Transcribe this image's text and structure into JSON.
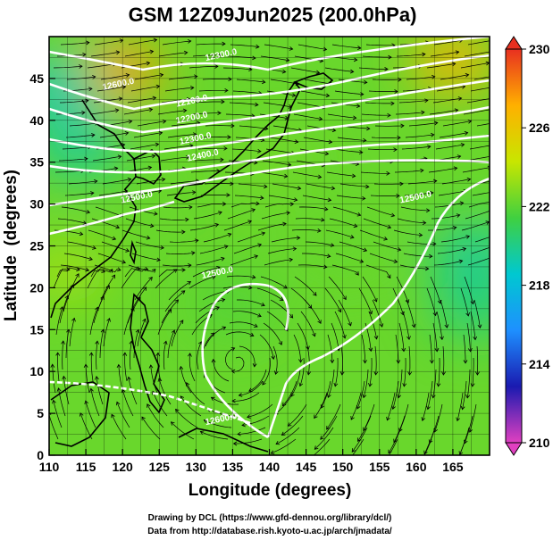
{
  "chart_data": {
    "type": "heatmap",
    "title": "GSM 12Z09Jun2025 (200.0hPa)",
    "xlabel": "Longitude (degrees)",
    "ylabel": "Latitude  (degrees)",
    "xlim": [
      110,
      170
    ],
    "ylim": [
      0,
      50
    ],
    "x_ticks": [
      110,
      115,
      120,
      125,
      130,
      135,
      140,
      145,
      150,
      155,
      160,
      165
    ],
    "y_ticks": [
      0,
      5,
      10,
      15,
      20,
      25,
      30,
      35,
      40,
      45
    ],
    "grid": true,
    "colorbar": {
      "min": 210,
      "max": 230,
      "ticks": [
        210,
        214,
        218,
        222,
        226,
        230
      ],
      "stops": [
        "#e040c0",
        "#1a1ab0",
        "#1e90ff",
        "#00c8d0",
        "#40d040",
        "#c8e600",
        "#ffb000",
        "#e83020"
      ]
    },
    "field_regions": [
      {
        "lon": 120,
        "lat": 46,
        "value": 227.5
      },
      {
        "lon": 111,
        "lat": 44,
        "value": 219
      },
      {
        "lon": 114,
        "lat": 37,
        "value": 219.5
      },
      {
        "lon": 165,
        "lat": 47,
        "value": 227
      },
      {
        "lon": 168,
        "lat": 24,
        "value": 219.5
      },
      {
        "lon": 168,
        "lat": 18,
        "value": 220
      },
      {
        "lon": 140,
        "lat": 35,
        "value": 222.5
      },
      {
        "lon": 112,
        "lat": 22,
        "value": 223.5
      },
      {
        "lon": 135,
        "lat": 18,
        "value": 221.8
      },
      {
        "lon": 150,
        "lat": 25,
        "value": 222.2
      }
    ],
    "contour_labels": [
      {
        "text": "12300.0",
        "lon": 133.5,
        "lat": 47.5
      },
      {
        "text": "12600.0",
        "lon": 119.5,
        "lat": 44.0
      },
      {
        "text": "12100.0",
        "lon": 129.5,
        "lat": 42.0
      },
      {
        "text": "12200.0",
        "lon": 129.5,
        "lat": 40.0
      },
      {
        "text": "12300.0",
        "lon": 130.0,
        "lat": 37.5
      },
      {
        "text": "12400.0",
        "lon": 131.0,
        "lat": 35.5
      },
      {
        "text": "12500.0",
        "lon": 122.0,
        "lat": 30.5
      },
      {
        "text": "12500.0",
        "lon": 133.0,
        "lat": 21.5
      },
      {
        "text": "12500.0",
        "lon": 160.0,
        "lat": 30.5
      },
      {
        "text": "12600.0",
        "lon": 133.5,
        "lat": 4.0
      }
    ]
  },
  "footer": {
    "line1": "Drawing by DCL (https://www.gfd-dennou.org/library/dcl/)",
    "line2": "Data from http://database.rish.kyoto-u.ac.jp/arch/jmadata/"
  },
  "colors": {
    "contour": "#ffffff",
    "coast": "#000000",
    "stream": "#000000",
    "grid": "#000000"
  }
}
